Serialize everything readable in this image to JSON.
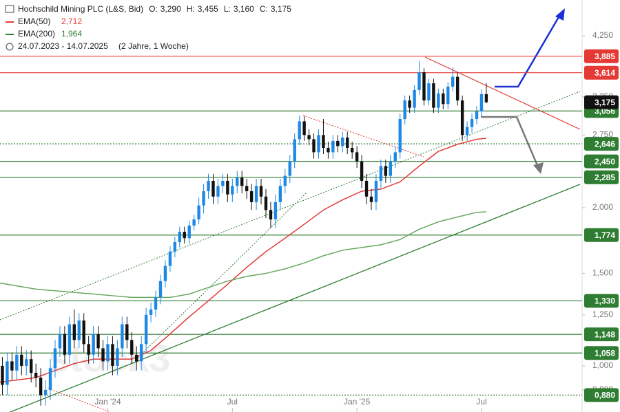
{
  "chart_data": {
    "type": "candlestick",
    "title": "Hochschild Mining PLC (L&S, Bid)",
    "ohlc_header": [
      {
        "label": "O:",
        "value": "3,290"
      },
      {
        "label": "H:",
        "value": "3,455"
      },
      {
        "label": "L:",
        "value": "3,160"
      },
      {
        "label": "C:",
        "value": "3,175"
      }
    ],
    "period": "24.07.2023 - 14.07.2025",
    "period_note": "(2 Jahre, 1 Woche)",
    "watermark": "stock3",
    "log_scale": true,
    "up_color": "#1e88e5",
    "down_color": "#111111",
    "xlim": [
      0.5,
      122
    ],
    "xticks": [
      {
        "value": 23,
        "label": "Jan '24"
      },
      {
        "value": 49,
        "label": "Jul"
      },
      {
        "value": 75,
        "label": "Jan '25"
      },
      {
        "value": 101,
        "label": "Jul"
      }
    ],
    "ylim": [
      0.817,
      4.97
    ],
    "yticks": [
      {
        "value": 4.25,
        "label": "4,250"
      },
      {
        "value": 3.25,
        "label": "3,250"
      },
      {
        "value": 2.75,
        "label": "2,750"
      },
      {
        "value": 2.0,
        "label": "2,000"
      },
      {
        "value": 1.5,
        "label": "1,500"
      },
      {
        "value": 1.25,
        "label": "1,250"
      },
      {
        "value": 1.0,
        "label": "1,000"
      },
      {
        "value": 0.9,
        "label": "0,900"
      }
    ],
    "candles": [
      [
        1.05,
        1.09,
        0.96,
        1.0
      ],
      [
        1.0,
        1.04,
        0.88,
        0.92
      ],
      [
        0.92,
        1.06,
        0.88,
        1.02
      ],
      [
        1.02,
        1.06,
        0.94,
        0.98
      ],
      [
        0.98,
        1.09,
        0.94,
        1.05
      ],
      [
        1.05,
        1.09,
        0.96,
        1.0
      ],
      [
        1.0,
        1.07,
        0.96,
        1.03
      ],
      [
        1.03,
        1.07,
        0.93,
        0.97
      ],
      [
        0.97,
        1.01,
        0.91,
        0.95
      ],
      [
        0.95,
        0.99,
        0.84,
        0.88
      ],
      [
        0.88,
        0.94,
        0.84,
        0.9
      ],
      [
        0.9,
        1.03,
        0.86,
        0.99
      ],
      [
        0.99,
        1.12,
        0.95,
        1.08
      ],
      [
        1.08,
        1.19,
        1.04,
        1.15
      ],
      [
        1.15,
        1.19,
        1.01,
        1.05
      ],
      [
        1.05,
        1.24,
        1.01,
        1.2
      ],
      [
        1.2,
        1.28,
        1.08,
        1.12
      ],
      [
        1.12,
        1.26,
        1.08,
        1.22
      ],
      [
        1.22,
        1.26,
        1.06,
        1.1
      ],
      [
        1.1,
        1.14,
        1.01,
        1.05
      ],
      [
        1.05,
        1.19,
        1.01,
        1.15
      ],
      [
        1.15,
        1.19,
        1.04,
        1.08
      ],
      [
        1.08,
        1.12,
        0.98,
        1.02
      ],
      [
        1.02,
        1.14,
        0.98,
        1.1
      ],
      [
        1.1,
        1.14,
        0.96,
        1.0
      ],
      [
        1.0,
        1.12,
        0.96,
        1.08
      ],
      [
        1.08,
        1.24,
        1.04,
        1.2
      ],
      [
        1.2,
        1.24,
        1.08,
        1.12
      ],
      [
        1.12,
        1.16,
        1.01,
        1.05
      ],
      [
        1.05,
        1.09,
        0.98,
        1.02
      ],
      [
        1.02,
        1.14,
        0.98,
        1.1
      ],
      [
        1.1,
        1.29,
        1.06,
        1.25
      ],
      [
        1.25,
        1.32,
        1.21,
        1.28
      ],
      [
        1.28,
        1.39,
        1.24,
        1.35
      ],
      [
        1.35,
        1.49,
        1.31,
        1.45
      ],
      [
        1.45,
        1.59,
        1.41,
        1.55
      ],
      [
        1.55,
        1.69,
        1.51,
        1.65
      ],
      [
        1.65,
        1.76,
        1.61,
        1.72
      ],
      [
        1.72,
        1.84,
        1.68,
        1.8
      ],
      [
        1.8,
        1.84,
        1.71,
        1.75
      ],
      [
        1.75,
        1.89,
        1.71,
        1.85
      ],
      [
        1.85,
        1.94,
        1.81,
        1.9
      ],
      [
        1.9,
        2.09,
        1.86,
        2.02
      ],
      [
        2.02,
        2.22,
        1.95,
        2.15
      ],
      [
        2.15,
        2.32,
        2.08,
        2.25
      ],
      [
        2.25,
        2.32,
        2.03,
        2.1
      ],
      [
        2.1,
        2.27,
        2.03,
        2.2
      ],
      [
        2.2,
        2.32,
        2.13,
        2.25
      ],
      [
        2.25,
        2.32,
        2.05,
        2.12
      ],
      [
        2.12,
        2.27,
        2.05,
        2.2
      ],
      [
        2.2,
        2.35,
        2.13,
        2.28
      ],
      [
        2.28,
        2.35,
        2.13,
        2.2
      ],
      [
        2.2,
        2.27,
        2.08,
        2.15
      ],
      [
        2.15,
        2.22,
        1.98,
        2.05
      ],
      [
        2.05,
        2.27,
        1.98,
        2.2
      ],
      [
        2.2,
        2.27,
        2.03,
        2.1
      ],
      [
        2.1,
        2.17,
        1.91,
        1.98
      ],
      [
        1.98,
        2.05,
        1.83,
        1.9
      ],
      [
        1.9,
        2.12,
        1.83,
        2.05
      ],
      [
        2.05,
        2.27,
        1.98,
        2.2
      ],
      [
        2.2,
        2.37,
        2.13,
        2.3
      ],
      [
        2.3,
        2.52,
        2.23,
        2.45
      ],
      [
        2.45,
        2.77,
        2.38,
        2.7
      ],
      [
        2.7,
        2.99,
        2.63,
        2.92
      ],
      [
        2.92,
        2.99,
        2.68,
        2.75
      ],
      [
        2.75,
        2.82,
        2.63,
        2.7
      ],
      [
        2.7,
        2.77,
        2.48,
        2.55
      ],
      [
        2.55,
        2.82,
        2.48,
        2.75
      ],
      [
        2.75,
        2.95,
        2.53,
        2.6
      ],
      [
        2.6,
        2.67,
        2.48,
        2.55
      ],
      [
        2.55,
        2.75,
        2.48,
        2.68
      ],
      [
        2.68,
        2.75,
        2.55,
        2.62
      ],
      [
        2.62,
        2.79,
        2.55,
        2.72
      ],
      [
        2.72,
        2.79,
        2.53,
        2.6
      ],
      [
        2.6,
        2.67,
        2.48,
        2.55
      ],
      [
        2.55,
        2.62,
        2.38,
        2.45
      ],
      [
        2.45,
        2.52,
        2.18,
        2.25
      ],
      [
        2.25,
        2.32,
        2.03,
        2.1
      ],
      [
        2.1,
        2.17,
        1.98,
        2.05
      ],
      [
        2.05,
        2.32,
        1.98,
        2.25
      ],
      [
        2.25,
        2.47,
        2.18,
        2.4
      ],
      [
        2.4,
        2.47,
        2.23,
        2.3
      ],
      [
        2.3,
        2.52,
        2.23,
        2.45
      ],
      [
        2.45,
        2.62,
        2.38,
        2.55
      ],
      [
        2.55,
        3.02,
        2.48,
        2.95
      ],
      [
        2.95,
        3.27,
        2.88,
        3.2
      ],
      [
        3.2,
        3.27,
        3.03,
        3.1
      ],
      [
        3.1,
        3.42,
        3.03,
        3.35
      ],
      [
        3.35,
        3.8,
        3.28,
        3.62
      ],
      [
        3.62,
        3.69,
        3.13,
        3.2
      ],
      [
        3.2,
        3.52,
        3.13,
        3.45
      ],
      [
        3.45,
        3.52,
        3.03,
        3.1
      ],
      [
        3.1,
        3.37,
        3.03,
        3.3
      ],
      [
        3.3,
        3.37,
        3.08,
        3.15
      ],
      [
        3.15,
        3.47,
        3.08,
        3.4
      ],
      [
        3.4,
        3.7,
        3.33,
        3.55
      ],
      [
        3.55,
        3.62,
        3.13,
        3.2
      ],
      [
        3.2,
        3.27,
        2.68,
        2.75
      ],
      [
        2.75,
        2.92,
        2.68,
        2.85
      ],
      [
        2.85,
        3.02,
        2.78,
        2.95
      ],
      [
        2.95,
        3.12,
        2.88,
        3.05
      ],
      [
        3.05,
        3.36,
        2.98,
        3.29
      ],
      [
        3.29,
        3.455,
        3.16,
        3.175
      ]
    ],
    "ema_x": [
      0,
      4,
      8,
      12,
      16,
      20,
      24,
      28,
      32,
      36,
      40,
      44,
      48,
      52,
      56,
      60,
      64,
      68,
      72,
      76,
      80,
      84,
      88,
      92,
      96,
      100,
      102
    ],
    "series": [
      {
        "name": "EMA(50)",
        "value_label": "2,712",
        "color": "#e53935",
        "values": [
          0.93,
          0.94,
          0.95,
          0.98,
          1.01,
          1.03,
          1.03,
          1.03,
          1.07,
          1.15,
          1.24,
          1.33,
          1.43,
          1.54,
          1.65,
          1.75,
          1.86,
          1.98,
          2.07,
          2.15,
          2.17,
          2.24,
          2.4,
          2.56,
          2.64,
          2.7,
          2.712
        ]
      },
      {
        "name": "EMA(200)",
        "value_label": "1,964",
        "color": "#66a85e",
        "values": [
          1.44,
          1.42,
          1.4,
          1.39,
          1.38,
          1.37,
          1.36,
          1.35,
          1.35,
          1.35,
          1.37,
          1.41,
          1.45,
          1.48,
          1.5,
          1.53,
          1.57,
          1.62,
          1.66,
          1.68,
          1.7,
          1.74,
          1.82,
          1.88,
          1.92,
          1.96,
          1.964
        ]
      }
    ],
    "levels": [
      {
        "value": 3.885,
        "label": "3,885",
        "color": "#e53935",
        "style": "solid"
      },
      {
        "value": 3.614,
        "label": "3,614",
        "color": "#e53935",
        "style": "solid"
      },
      {
        "value": 3.056,
        "label": "3,056",
        "color": "#2e7d32",
        "style": "solid"
      },
      {
        "value": 2.646,
        "label": "2,646",
        "color": "#2e7d32",
        "style": "dotted"
      },
      {
        "value": 2.45,
        "label": "2,450",
        "color": "#2e7d32",
        "style": "solid"
      },
      {
        "value": 2.285,
        "label": "2,285",
        "color": "#2e7d32",
        "style": "solid"
      },
      {
        "value": 1.774,
        "label": "1,774",
        "color": "#2e7d32",
        "style": "solid"
      },
      {
        "value": 1.33,
        "label": "1,330",
        "color": "#2e7d32",
        "style": "solid"
      },
      {
        "value": 1.148,
        "label": "1,148",
        "color": "#2e7d32",
        "style": "solid"
      },
      {
        "value": 1.058,
        "label": "1,058",
        "color": "#2e7d32",
        "style": "solid"
      },
      {
        "value": 0.88,
        "label": "0,880",
        "color": "#2e7d32",
        "style": "dotted"
      }
    ],
    "last_price": {
      "value": 3.175,
      "label": "3,175",
      "color": "#111111"
    }
  }
}
